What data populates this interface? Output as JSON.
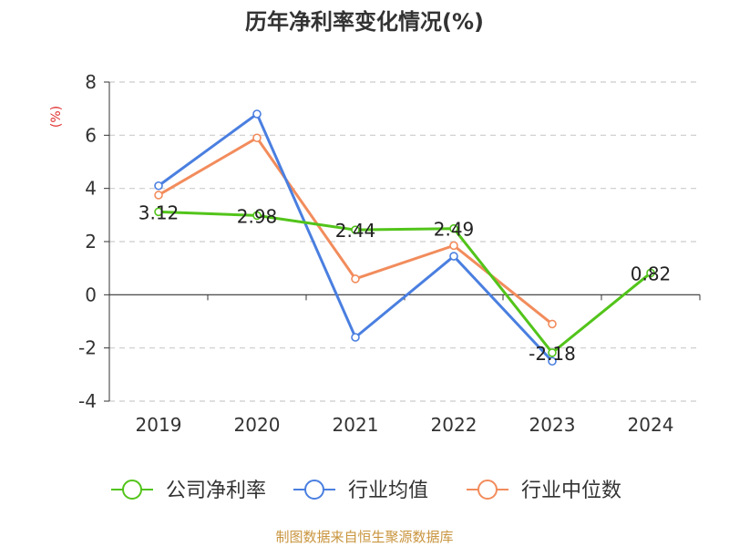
{
  "chart_data": {
    "type": "line",
    "title": "历年净利率变化情况(%)",
    "ylabel": "(%)",
    "categories": [
      "2019",
      "2020",
      "2021",
      "2022",
      "2023",
      "2024"
    ],
    "ylim": [
      -4,
      8
    ],
    "yticks": [
      -4,
      -2,
      0,
      2,
      4,
      6,
      8
    ],
    "grid": true,
    "legend_position": "bottom",
    "series": [
      {
        "name": "公司净利率",
        "color": "#52c41a",
        "values": [
          3.12,
          2.98,
          2.44,
          2.49,
          -2.18,
          0.82
        ],
        "labels": [
          "3.12",
          "2.98",
          "2.44",
          "2.49",
          "-2.18",
          "0.82"
        ]
      },
      {
        "name": "行业均值",
        "color": "#4a7fe0",
        "values": [
          4.1,
          6.8,
          -1.6,
          1.45,
          -2.5,
          null
        ]
      },
      {
        "name": "行业中位数",
        "color": "#f28c5c",
        "values": [
          3.75,
          5.9,
          0.6,
          1.85,
          -1.1,
          null
        ]
      }
    ]
  },
  "source": "制图数据来自恒生聚源数据库"
}
